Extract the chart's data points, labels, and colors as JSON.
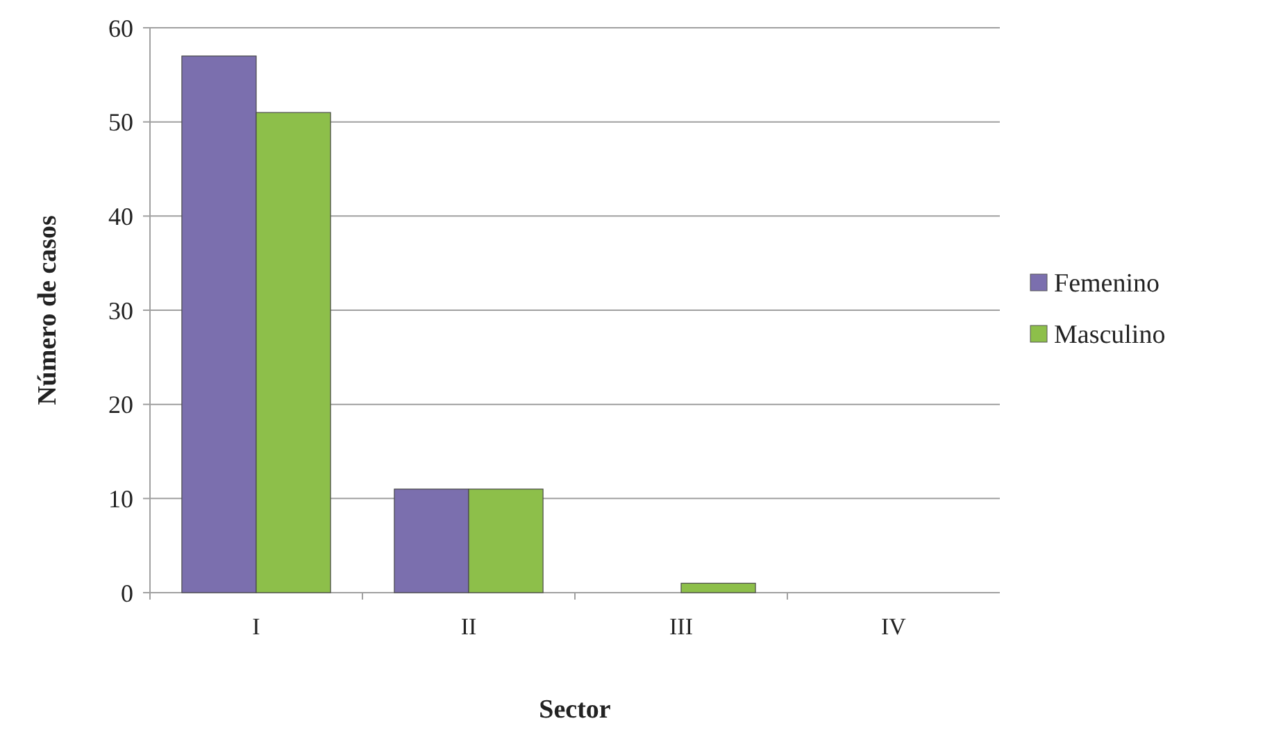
{
  "chart_data": {
    "type": "bar",
    "xlabel": "Sector",
    "ylabel": "Número de casos",
    "categories": [
      "I",
      "II",
      "III",
      "IV"
    ],
    "series": [
      {
        "name": "Femenino",
        "color": "#7b6fae",
        "values": [
          57,
          11,
          0,
          0
        ]
      },
      {
        "name": "Masculino",
        "color": "#8dbf4a",
        "values": [
          51,
          11,
          1,
          0
        ]
      }
    ],
    "ylim": [
      0,
      60
    ],
    "yticks": [
      0,
      10,
      20,
      30,
      40,
      50,
      60
    ],
    "grid": "y",
    "legend": "right"
  }
}
